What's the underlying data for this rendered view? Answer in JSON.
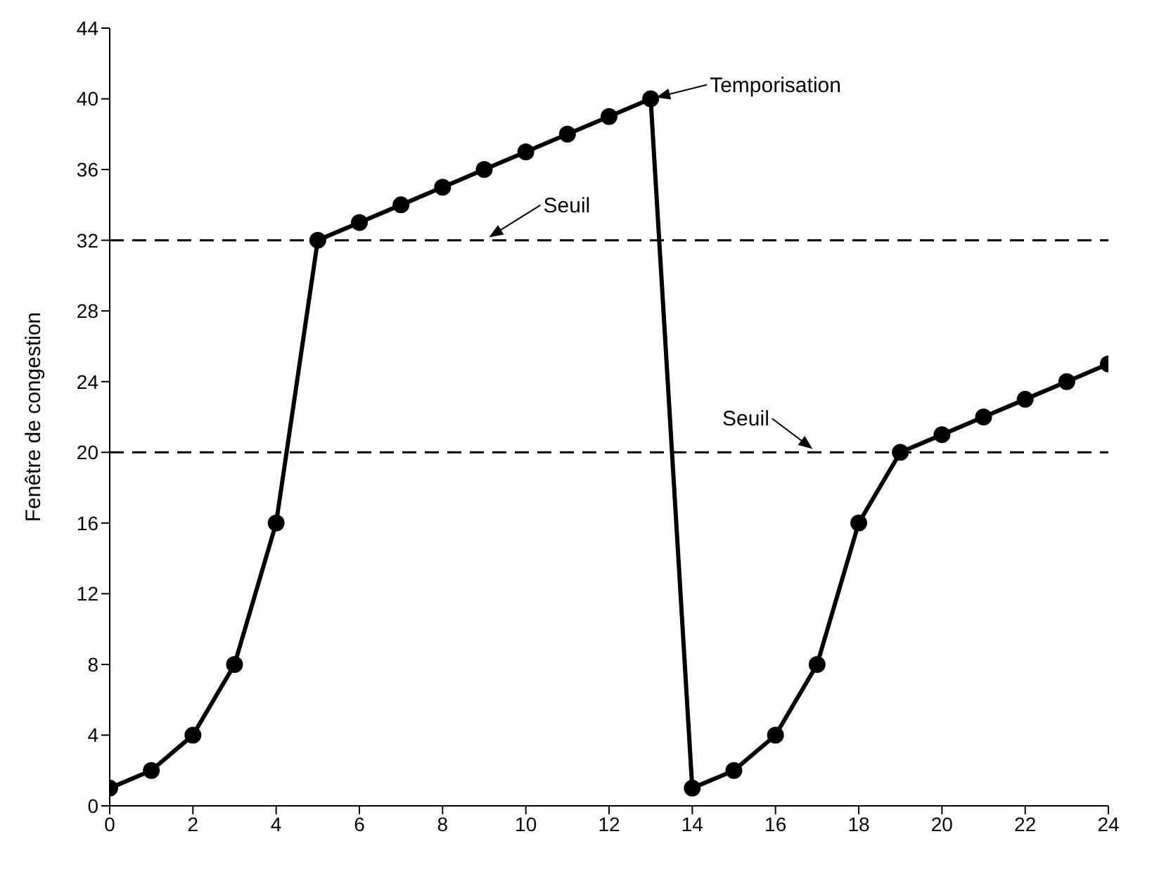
{
  "chart_data": {
    "type": "line",
    "ylabel": "Fenêtre de congestion",
    "x": [
      0,
      1,
      2,
      3,
      4,
      5,
      6,
      7,
      8,
      9,
      10,
      11,
      12,
      13,
      14,
      15,
      16,
      17,
      18,
      19,
      20,
      21,
      22,
      23,
      24
    ],
    "series": [
      {
        "color": "#000000",
        "values": [
          1,
          2,
          4,
          8,
          16,
          32,
          33,
          34,
          35,
          36,
          37,
          38,
          39,
          40,
          1,
          2,
          4,
          8,
          16,
          20,
          21,
          22,
          23,
          24,
          25
        ]
      }
    ],
    "xlim": [
      0,
      24
    ],
    "xticks": [
      0,
      2,
      4,
      6,
      8,
      10,
      12,
      14,
      16,
      18,
      20,
      22,
      24
    ],
    "ylim": [
      0,
      44
    ],
    "yticks": [
      0,
      4,
      8,
      12,
      16,
      20,
      24,
      28,
      32,
      36,
      40,
      44
    ],
    "ref_lines": [
      {
        "axis": "y",
        "value": 32,
        "color": "#000000",
        "line_style": "dashed"
      },
      {
        "axis": "y",
        "value": 20,
        "color": "#000000",
        "line_style": "dashed"
      }
    ],
    "annotations": [
      {
        "text": "Temporisation",
        "x": 13,
        "y": 40
      },
      {
        "text": "Seuil",
        "x": 9,
        "y": 32
      },
      {
        "text": "Seuil",
        "x": 17,
        "y": 20
      }
    ],
    "marker": "circle",
    "line_style": "solid"
  }
}
